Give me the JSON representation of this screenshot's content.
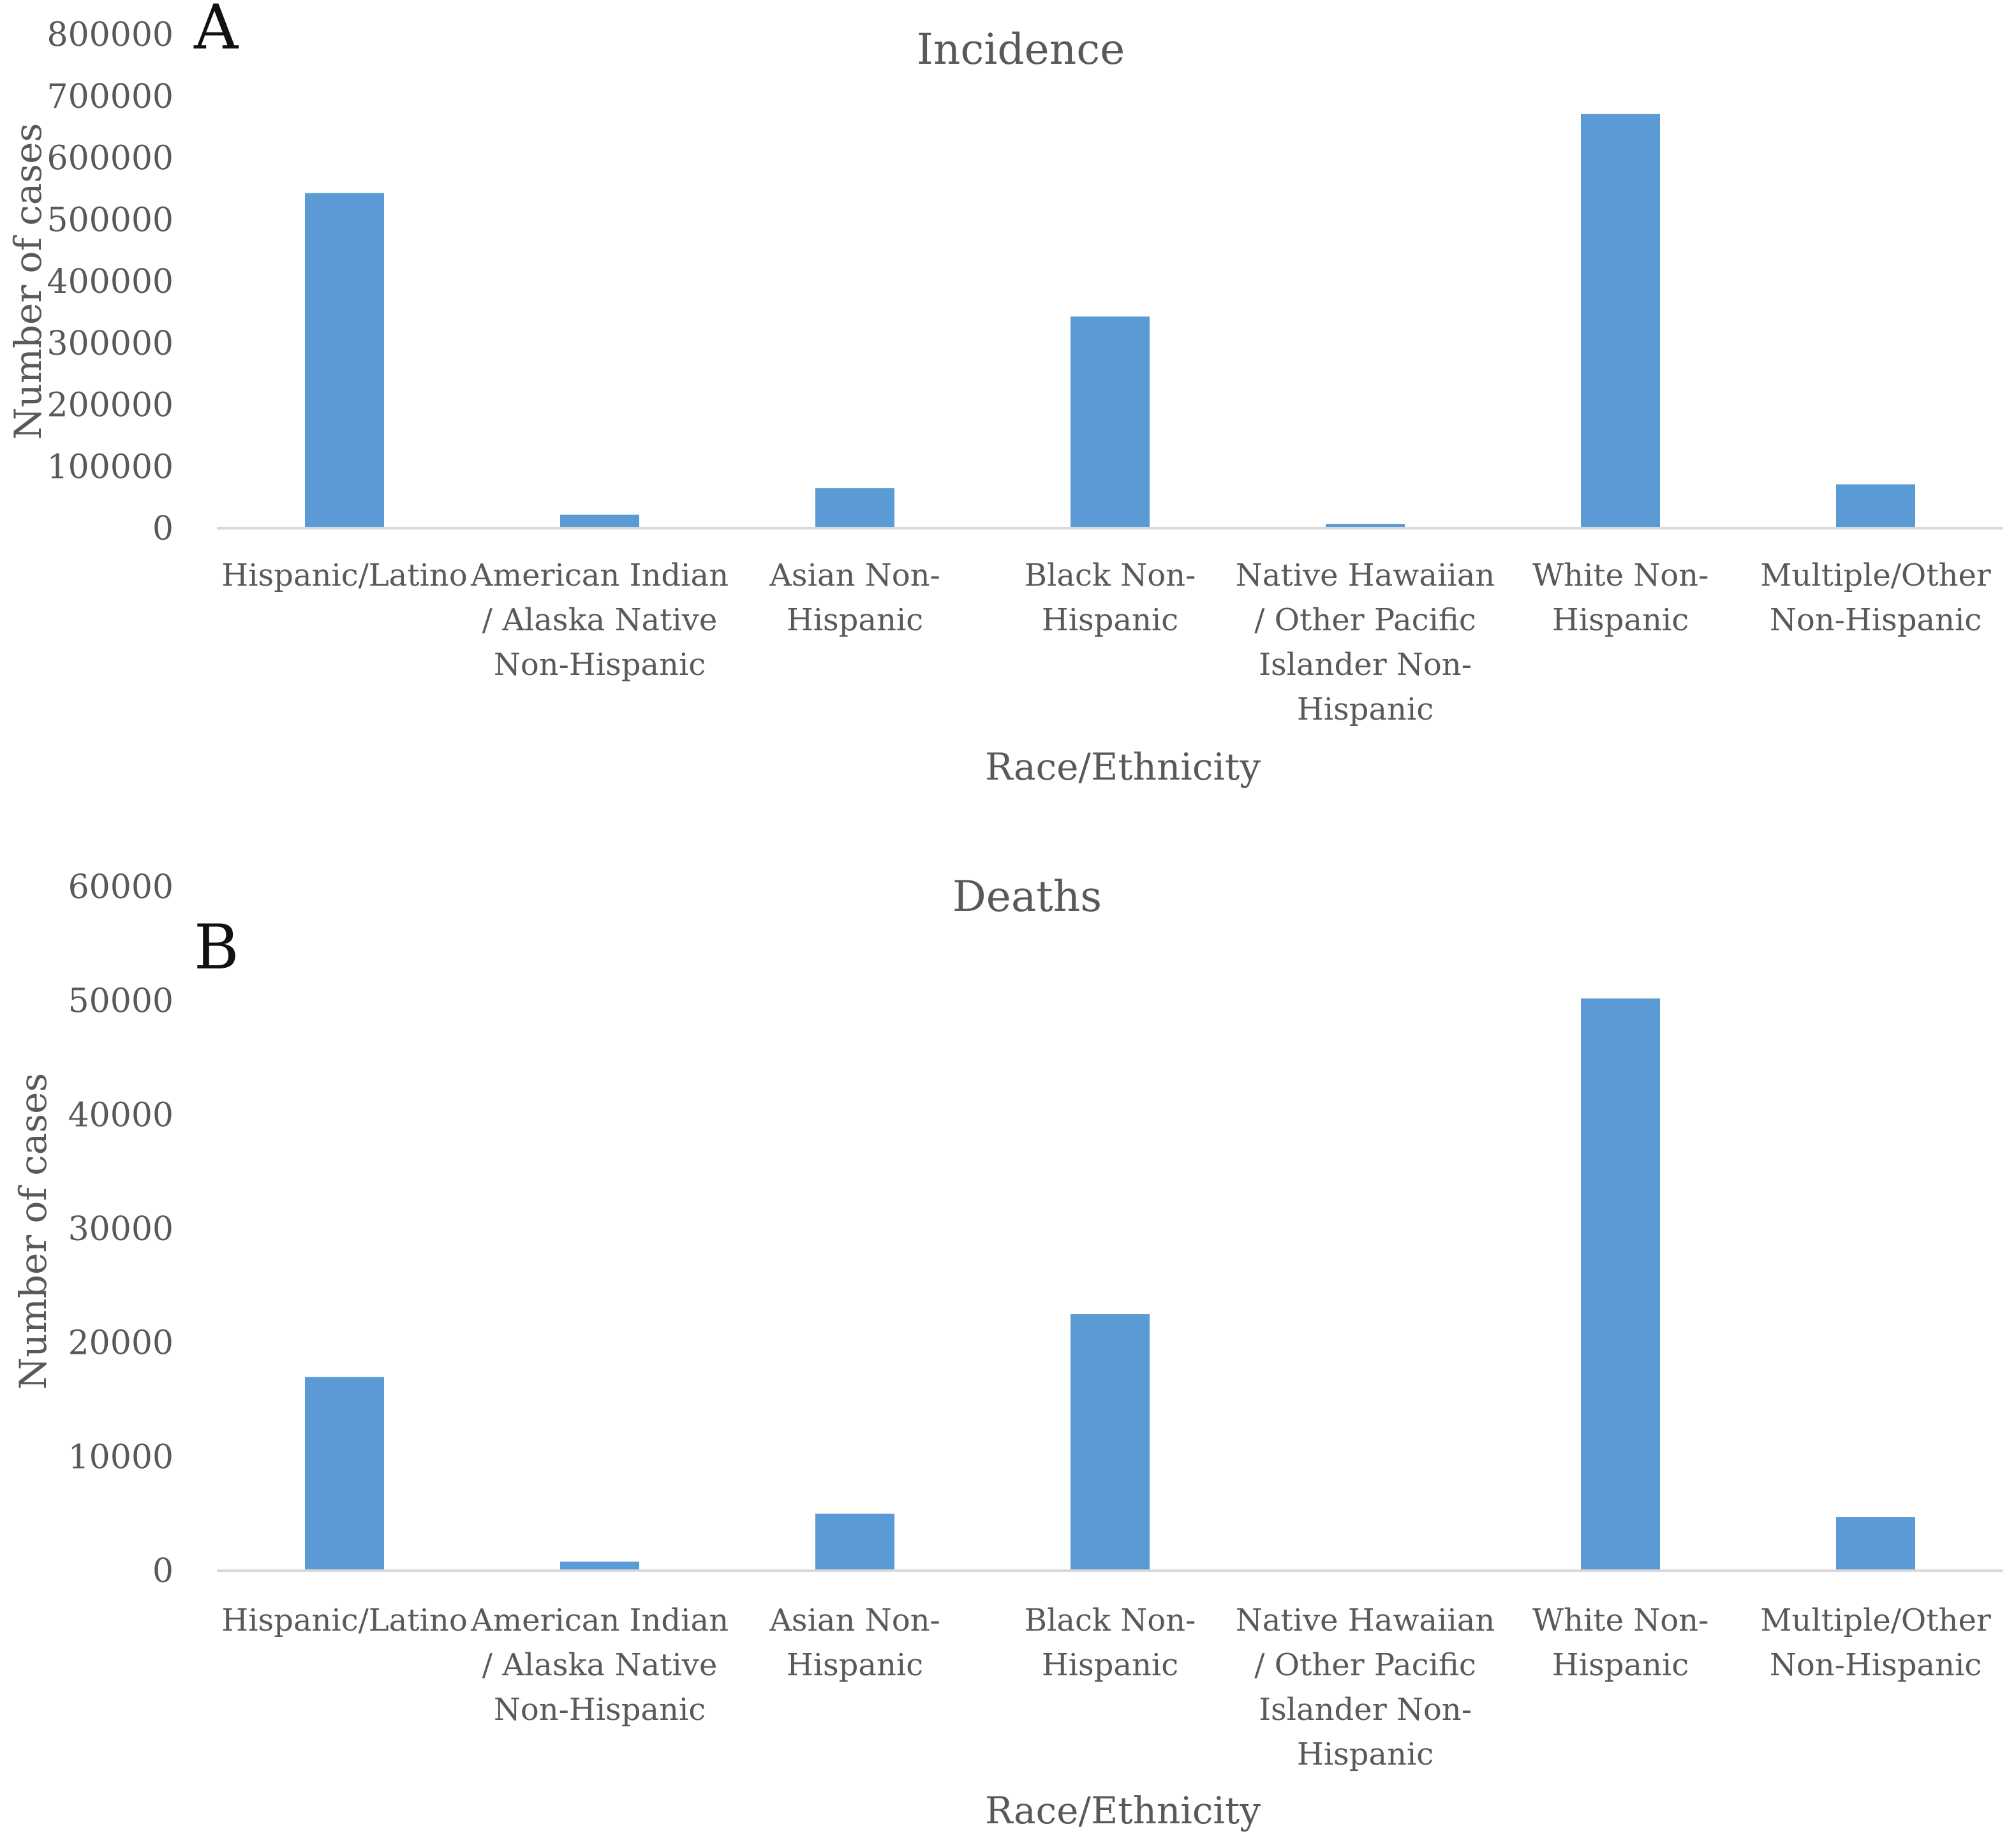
{
  "chart_data": [
    {
      "type": "bar",
      "panel_label": "A",
      "title": "Incidence",
      "xlabel": "Race/Ethnicity",
      "ylabel": "Number of cases",
      "ylim": [
        0,
        800000
      ],
      "yticks": [
        "0",
        "100000",
        "200000",
        "300000",
        "400000",
        "500000",
        "600000",
        "700000",
        "800000"
      ],
      "grid": false,
      "legend": "none",
      "bar_color": "#5b9bd5",
      "categories": [
        [
          "Hispanic/Latino"
        ],
        [
          "American Indian",
          "/ Alaska Native",
          "Non-Hispanic"
        ],
        [
          "Asian Non-",
          "Hispanic"
        ],
        [
          "Black Non-",
          "Hispanic"
        ],
        [
          "Native Hawaiian",
          "/ Other Pacific",
          "Islander Non-",
          "Hispanic"
        ],
        [
          "White Non-",
          "Hispanic"
        ],
        [
          "Multiple/Other",
          "Non-Hispanic"
        ]
      ],
      "values": [
        543000,
        22000,
        65000,
        343000,
        7000,
        671000,
        71000
      ]
    },
    {
      "type": "bar",
      "panel_label": "B",
      "title": "Deaths",
      "xlabel": "Race/Ethnicity",
      "ylabel": "Number of cases",
      "ylim": [
        0,
        60000
      ],
      "yticks": [
        "0",
        "10000",
        "20000",
        "30000",
        "40000",
        "50000",
        "60000"
      ],
      "grid": false,
      "legend": "none",
      "bar_color": "#5b9bd5",
      "categories": [
        [
          "Hispanic/Latino"
        ],
        [
          "American Indian",
          "/ Alaska Native",
          "Non-Hispanic"
        ],
        [
          "Asian Non-",
          "Hispanic"
        ],
        [
          "Black Non-",
          "Hispanic"
        ],
        [
          "Native Hawaiian",
          "/ Other Pacific",
          "Islander Non-",
          "Hispanic"
        ],
        [
          "White Non-",
          "Hispanic"
        ],
        [
          "Multiple/Other",
          "Non-Hispanic"
        ]
      ],
      "values": [
        17000,
        800,
        5000,
        22500,
        0,
        50200,
        4700
      ]
    }
  ]
}
